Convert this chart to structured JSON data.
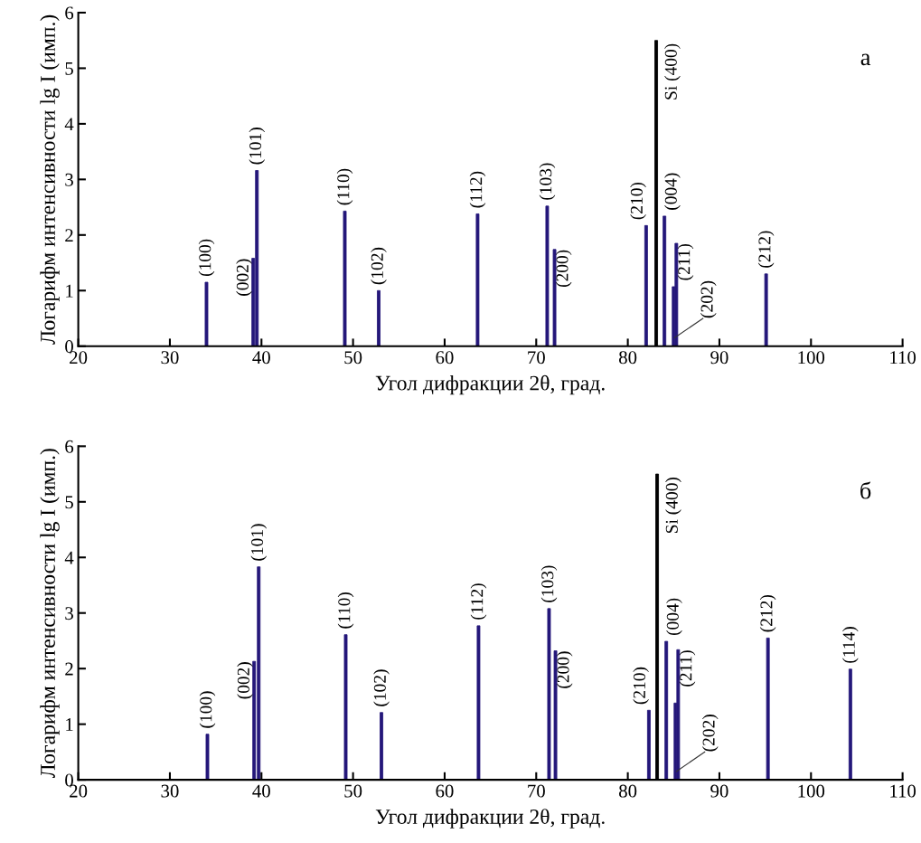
{
  "chart_data": [
    {
      "type": "bar",
      "xlabel": "Угол дифракции 2θ, град.",
      "ylabel": "Логарифм интенсивности lg I (имп.)",
      "xlim": [
        20,
        110
      ],
      "xticks": [
        20,
        30,
        40,
        50,
        60,
        70,
        80,
        90,
        100,
        110
      ],
      "ylim": [
        0,
        6
      ],
      "yticks": [
        0,
        1,
        2,
        3,
        4,
        5,
        6
      ],
      "grid": false,
      "series": [
        {
          "color": "#24177a",
          "x": [
            34.0,
            39.1,
            39.5,
            49.1,
            52.8,
            63.6,
            71.2,
            72.0,
            82.0,
            84.0,
            85.0,
            85.3,
            95.1
          ],
          "values": [
            1.15,
            1.58,
            3.16,
            2.43,
            1.0,
            2.38,
            2.52,
            1.74,
            2.17,
            2.34,
            1.07,
            1.85,
            1.3
          ]
        },
        {
          "color": "#000000",
          "x": [
            83.1
          ],
          "values": [
            5.5
          ]
        }
      ],
      "annotations": [
        {
          "text": "(100)",
          "x": 34.0,
          "y": 1.15
        },
        {
          "text": "(002)",
          "x": 39.1,
          "y": 1.58
        },
        {
          "text": "(101)",
          "x": 39.5,
          "y": 3.16
        },
        {
          "text": "(110)",
          "x": 49.1,
          "y": 2.43
        },
        {
          "text": "(102)",
          "x": 52.8,
          "y": 1.0
        },
        {
          "text": "(112)",
          "x": 63.6,
          "y": 2.38
        },
        {
          "text": "(103)",
          "x": 71.2,
          "y": 2.52
        },
        {
          "text": "(200)",
          "x": 72.0,
          "y": 1.74
        },
        {
          "text": "(210)",
          "x": 82.0,
          "y": 2.17
        },
        {
          "text": "Si (400)",
          "x": 83.1,
          "y": 5.5
        },
        {
          "text": "(004)",
          "x": 84.0,
          "y": 2.34
        },
        {
          "text": "(202)",
          "x": 85.0,
          "y": 1.07
        },
        {
          "text": "(211)",
          "x": 85.3,
          "y": 1.85
        },
        {
          "text": "(212)",
          "x": 95.1,
          "y": 1.3
        },
        "а"
      ]
    },
    {
      "type": "bar",
      "xlabel": "Угол дифракции 2θ, град.",
      "ylabel": "Логарифм интенсивности lg I (имп.)",
      "xlim": [
        20,
        110
      ],
      "xticks": [
        20,
        30,
        40,
        50,
        60,
        70,
        80,
        90,
        100,
        110
      ],
      "ylim": [
        0,
        6
      ],
      "yticks": [
        0,
        1,
        2,
        3,
        4,
        5,
        6
      ],
      "grid": false,
      "series": [
        {
          "color": "#24177a",
          "x": [
            34.1,
            39.2,
            39.7,
            49.2,
            53.1,
            63.7,
            71.4,
            72.1,
            82.3,
            84.2,
            85.2,
            85.5,
            95.3,
            104.3
          ],
          "values": [
            0.82,
            2.13,
            3.83,
            2.61,
            1.21,
            2.77,
            3.08,
            2.32,
            1.25,
            2.49,
            1.38,
            2.34,
            2.55,
            1.99
          ]
        },
        {
          "color": "#000000",
          "x": [
            83.2
          ],
          "values": [
            5.5
          ]
        }
      ],
      "annotations": [
        {
          "text": "(100)",
          "x": 34.1,
          "y": 0.82
        },
        {
          "text": "(002)",
          "x": 39.2,
          "y": 2.13
        },
        {
          "text": "(101)",
          "x": 39.7,
          "y": 3.83
        },
        {
          "text": "(110)",
          "x": 49.2,
          "y": 2.61
        },
        {
          "text": "(102)",
          "x": 53.1,
          "y": 1.21
        },
        {
          "text": "(112)",
          "x": 63.7,
          "y": 2.77
        },
        {
          "text": "(103)",
          "x": 71.4,
          "y": 3.08
        },
        {
          "text": "(200)",
          "x": 72.1,
          "y": 2.32
        },
        {
          "text": "(210)",
          "x": 82.3,
          "y": 1.25
        },
        {
          "text": "Si (400)",
          "x": 83.2,
          "y": 5.5
        },
        {
          "text": "(004)",
          "x": 84.2,
          "y": 2.49
        },
        {
          "text": "(202)",
          "x": 85.2,
          "y": 1.38
        },
        {
          "text": "(211)",
          "x": 85.5,
          "y": 2.34
        },
        {
          "text": "(212)",
          "x": 95.3,
          "y": 2.55
        },
        {
          "text": "(114)",
          "x": 104.3,
          "y": 1.99
        },
        "б"
      ]
    }
  ]
}
